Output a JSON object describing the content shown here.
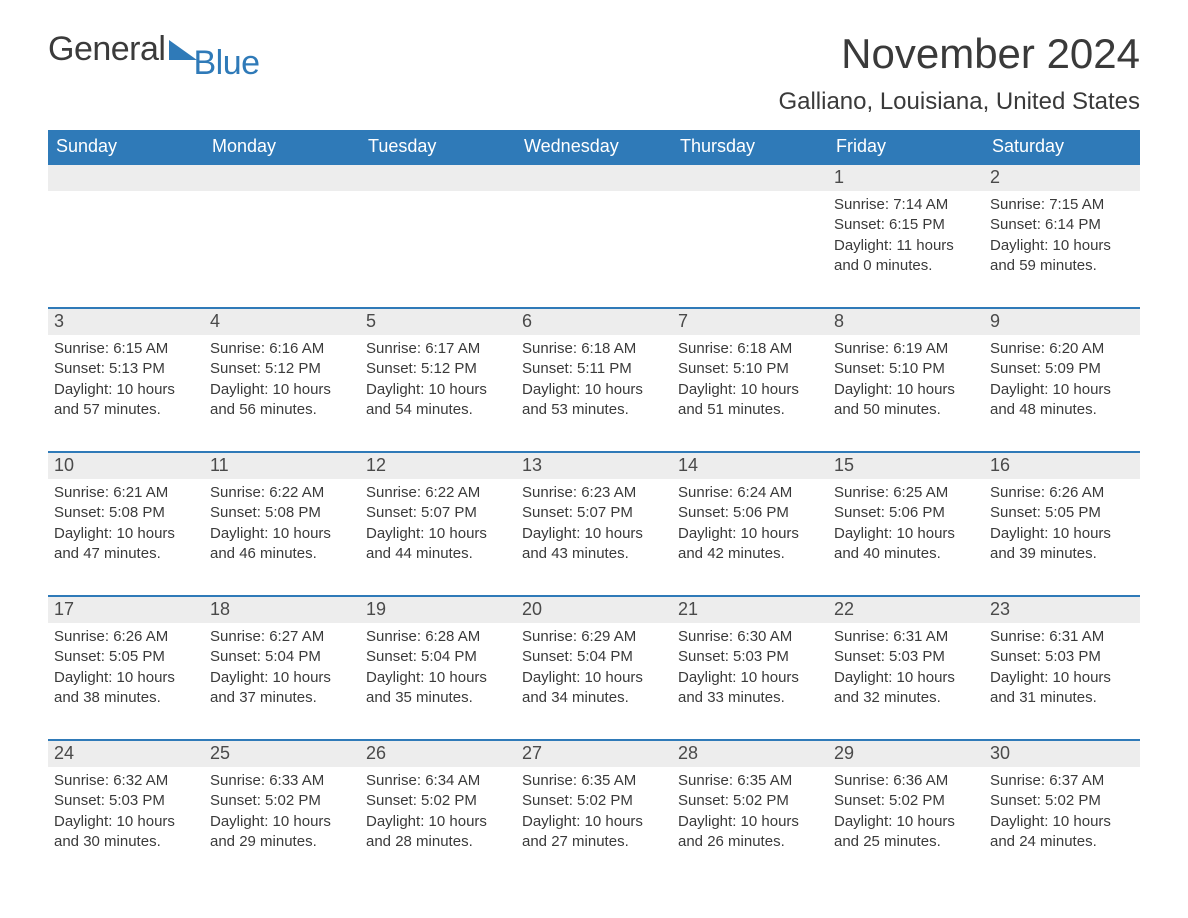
{
  "brand": {
    "part1": "General",
    "part2": "Blue",
    "logo_fill": "#2f7ab8"
  },
  "title": "November 2024",
  "location": "Galliano, Louisiana, United States",
  "colors": {
    "header_bg": "#2f7ab8",
    "header_text": "#ffffff",
    "daynum_bg": "#ededed",
    "text": "#3a3a3a",
    "week_border": "#2f7ab8",
    "page_bg": "#ffffff"
  },
  "days_of_week": [
    "Sunday",
    "Monday",
    "Tuesday",
    "Wednesday",
    "Thursday",
    "Friday",
    "Saturday"
  ],
  "weeks": [
    [
      null,
      null,
      null,
      null,
      null,
      {
        "n": "1",
        "sunrise": "Sunrise: 7:14 AM",
        "sunset": "Sunset: 6:15 PM",
        "daylight": "Daylight: 11 hours and 0 minutes."
      },
      {
        "n": "2",
        "sunrise": "Sunrise: 7:15 AM",
        "sunset": "Sunset: 6:14 PM",
        "daylight": "Daylight: 10 hours and 59 minutes."
      }
    ],
    [
      {
        "n": "3",
        "sunrise": "Sunrise: 6:15 AM",
        "sunset": "Sunset: 5:13 PM",
        "daylight": "Daylight: 10 hours and 57 minutes."
      },
      {
        "n": "4",
        "sunrise": "Sunrise: 6:16 AM",
        "sunset": "Sunset: 5:12 PM",
        "daylight": "Daylight: 10 hours and 56 minutes."
      },
      {
        "n": "5",
        "sunrise": "Sunrise: 6:17 AM",
        "sunset": "Sunset: 5:12 PM",
        "daylight": "Daylight: 10 hours and 54 minutes."
      },
      {
        "n": "6",
        "sunrise": "Sunrise: 6:18 AM",
        "sunset": "Sunset: 5:11 PM",
        "daylight": "Daylight: 10 hours and 53 minutes."
      },
      {
        "n": "7",
        "sunrise": "Sunrise: 6:18 AM",
        "sunset": "Sunset: 5:10 PM",
        "daylight": "Daylight: 10 hours and 51 minutes."
      },
      {
        "n": "8",
        "sunrise": "Sunrise: 6:19 AM",
        "sunset": "Sunset: 5:10 PM",
        "daylight": "Daylight: 10 hours and 50 minutes."
      },
      {
        "n": "9",
        "sunrise": "Sunrise: 6:20 AM",
        "sunset": "Sunset: 5:09 PM",
        "daylight": "Daylight: 10 hours and 48 minutes."
      }
    ],
    [
      {
        "n": "10",
        "sunrise": "Sunrise: 6:21 AM",
        "sunset": "Sunset: 5:08 PM",
        "daylight": "Daylight: 10 hours and 47 minutes."
      },
      {
        "n": "11",
        "sunrise": "Sunrise: 6:22 AM",
        "sunset": "Sunset: 5:08 PM",
        "daylight": "Daylight: 10 hours and 46 minutes."
      },
      {
        "n": "12",
        "sunrise": "Sunrise: 6:22 AM",
        "sunset": "Sunset: 5:07 PM",
        "daylight": "Daylight: 10 hours and 44 minutes."
      },
      {
        "n": "13",
        "sunrise": "Sunrise: 6:23 AM",
        "sunset": "Sunset: 5:07 PM",
        "daylight": "Daylight: 10 hours and 43 minutes."
      },
      {
        "n": "14",
        "sunrise": "Sunrise: 6:24 AM",
        "sunset": "Sunset: 5:06 PM",
        "daylight": "Daylight: 10 hours and 42 minutes."
      },
      {
        "n": "15",
        "sunrise": "Sunrise: 6:25 AM",
        "sunset": "Sunset: 5:06 PM",
        "daylight": "Daylight: 10 hours and 40 minutes."
      },
      {
        "n": "16",
        "sunrise": "Sunrise: 6:26 AM",
        "sunset": "Sunset: 5:05 PM",
        "daylight": "Daylight: 10 hours and 39 minutes."
      }
    ],
    [
      {
        "n": "17",
        "sunrise": "Sunrise: 6:26 AM",
        "sunset": "Sunset: 5:05 PM",
        "daylight": "Daylight: 10 hours and 38 minutes."
      },
      {
        "n": "18",
        "sunrise": "Sunrise: 6:27 AM",
        "sunset": "Sunset: 5:04 PM",
        "daylight": "Daylight: 10 hours and 37 minutes."
      },
      {
        "n": "19",
        "sunrise": "Sunrise: 6:28 AM",
        "sunset": "Sunset: 5:04 PM",
        "daylight": "Daylight: 10 hours and 35 minutes."
      },
      {
        "n": "20",
        "sunrise": "Sunrise: 6:29 AM",
        "sunset": "Sunset: 5:04 PM",
        "daylight": "Daylight: 10 hours and 34 minutes."
      },
      {
        "n": "21",
        "sunrise": "Sunrise: 6:30 AM",
        "sunset": "Sunset: 5:03 PM",
        "daylight": "Daylight: 10 hours and 33 minutes."
      },
      {
        "n": "22",
        "sunrise": "Sunrise: 6:31 AM",
        "sunset": "Sunset: 5:03 PM",
        "daylight": "Daylight: 10 hours and 32 minutes."
      },
      {
        "n": "23",
        "sunrise": "Sunrise: 6:31 AM",
        "sunset": "Sunset: 5:03 PM",
        "daylight": "Daylight: 10 hours and 31 minutes."
      }
    ],
    [
      {
        "n": "24",
        "sunrise": "Sunrise: 6:32 AM",
        "sunset": "Sunset: 5:03 PM",
        "daylight": "Daylight: 10 hours and 30 minutes."
      },
      {
        "n": "25",
        "sunrise": "Sunrise: 6:33 AM",
        "sunset": "Sunset: 5:02 PM",
        "daylight": "Daylight: 10 hours and 29 minutes."
      },
      {
        "n": "26",
        "sunrise": "Sunrise: 6:34 AM",
        "sunset": "Sunset: 5:02 PM",
        "daylight": "Daylight: 10 hours and 28 minutes."
      },
      {
        "n": "27",
        "sunrise": "Sunrise: 6:35 AM",
        "sunset": "Sunset: 5:02 PM",
        "daylight": "Daylight: 10 hours and 27 minutes."
      },
      {
        "n": "28",
        "sunrise": "Sunrise: 6:35 AM",
        "sunset": "Sunset: 5:02 PM",
        "daylight": "Daylight: 10 hours and 26 minutes."
      },
      {
        "n": "29",
        "sunrise": "Sunrise: 6:36 AM",
        "sunset": "Sunset: 5:02 PM",
        "daylight": "Daylight: 10 hours and 25 minutes."
      },
      {
        "n": "30",
        "sunrise": "Sunrise: 6:37 AM",
        "sunset": "Sunset: 5:02 PM",
        "daylight": "Daylight: 10 hours and 24 minutes."
      }
    ]
  ]
}
